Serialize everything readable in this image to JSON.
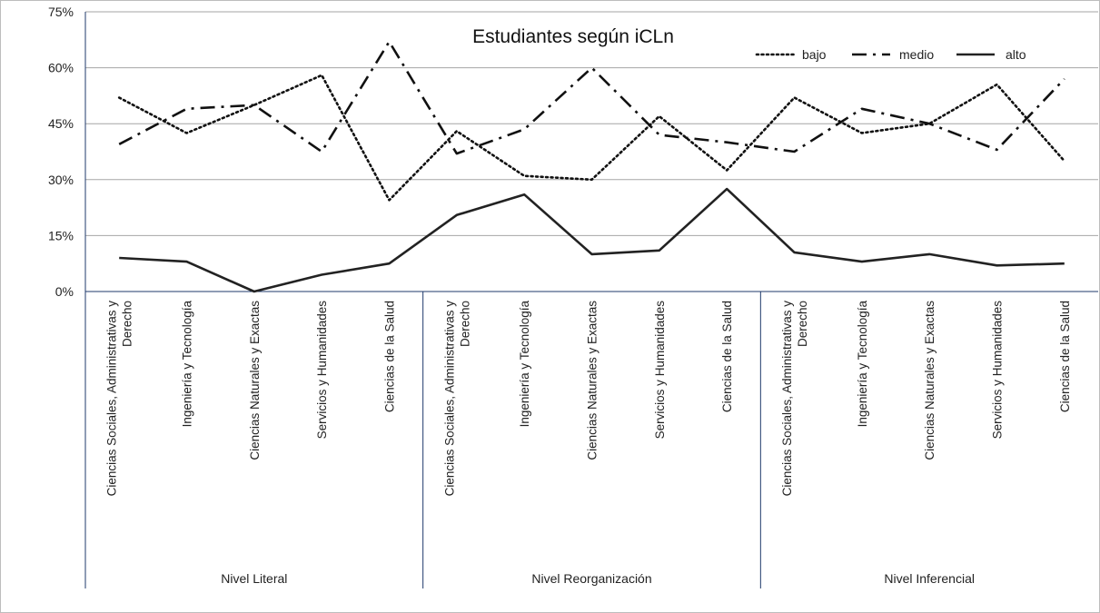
{
  "chart_data": {
    "type": "line",
    "title": "Estudiantes según iCLn",
    "xlabel": "",
    "ylabel": "",
    "ylim": [
      0,
      75
    ],
    "yticks": [
      0,
      15,
      30,
      45,
      60,
      75
    ],
    "y_tick_labels": [
      "0%",
      "15%",
      "30%",
      "45%",
      "60%",
      "75%"
    ],
    "grid": "horizontal",
    "legend_position": "top-right",
    "groups": [
      {
        "label": "Nivel Literal",
        "categories": [
          [
            "Ciencias Sociales, Administrativas y",
            "Derecho"
          ],
          [
            "Ingeniería y Tecnología"
          ],
          [
            "Ciencias Naturales y Exactas"
          ],
          [
            "Servicios y Humanidades"
          ],
          [
            "Ciencias de la Salud"
          ]
        ]
      },
      {
        "label": "Nivel Reorganización",
        "categories": [
          [
            "Ciencias Sociales, Administrativas y",
            "Derecho"
          ],
          [
            "Ingeniería y Tecnología"
          ],
          [
            "Ciencias Naturales y Exactas"
          ],
          [
            "Servicios y Humanidades"
          ],
          [
            "Ciencias de la Salud"
          ]
        ]
      },
      {
        "label": "Nivel Inferencial",
        "categories": [
          [
            "Ciencias Sociales, Administrativas y",
            "Derecho"
          ],
          [
            "Ingeniería y Tecnología"
          ],
          [
            "Ciencias Naturales y Exactas"
          ],
          [
            "Servicios y Humanidades"
          ],
          [
            "Ciencias de la Salud"
          ]
        ]
      }
    ],
    "series": [
      {
        "name": "bajo",
        "style": "dotted",
        "color": "#111111",
        "values": [
          52,
          42.5,
          50,
          58,
          24.5,
          43,
          31,
          30,
          47,
          32.5,
          52,
          42.5,
          45,
          55.5,
          35
        ]
      },
      {
        "name": "medio",
        "style": "dashdot",
        "color": "#111111",
        "values": [
          39.5,
          49,
          50,
          37.5,
          67,
          37,
          43.5,
          60,
          42,
          40,
          37.5,
          49,
          45,
          38,
          57
        ]
      },
      {
        "name": "alto",
        "style": "solid",
        "color": "#222222",
        "values": [
          9,
          8,
          0,
          4.5,
          7.5,
          20.5,
          26,
          10,
          11,
          27.5,
          10.5,
          8,
          10,
          7,
          7.5
        ]
      }
    ]
  }
}
